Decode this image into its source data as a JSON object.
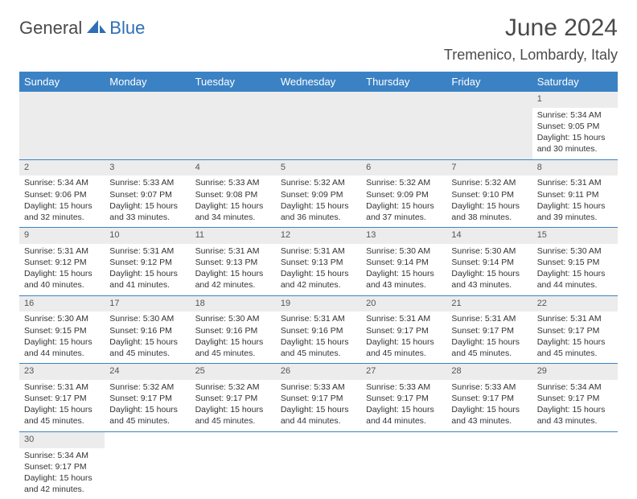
{
  "logo": {
    "text1": "General",
    "text2": "Blue"
  },
  "title": "June 2024",
  "location": "Tremenico, Lombardy, Italy",
  "colors": {
    "header_bg": "#3b82c4",
    "header_fg": "#ffffff",
    "border": "#3b82c4",
    "shade": "#ececec",
    "text": "#333333"
  },
  "weekdays": [
    "Sunday",
    "Monday",
    "Tuesday",
    "Wednesday",
    "Thursday",
    "Friday",
    "Saturday"
  ],
  "weeks": [
    [
      null,
      null,
      null,
      null,
      null,
      null,
      {
        "n": "1",
        "sr": "Sunrise: 5:34 AM",
        "ss": "Sunset: 9:05 PM",
        "dl": "Daylight: 15 hours and 30 minutes."
      }
    ],
    [
      {
        "n": "2",
        "sr": "Sunrise: 5:34 AM",
        "ss": "Sunset: 9:06 PM",
        "dl": "Daylight: 15 hours and 32 minutes."
      },
      {
        "n": "3",
        "sr": "Sunrise: 5:33 AM",
        "ss": "Sunset: 9:07 PM",
        "dl": "Daylight: 15 hours and 33 minutes."
      },
      {
        "n": "4",
        "sr": "Sunrise: 5:33 AM",
        "ss": "Sunset: 9:08 PM",
        "dl": "Daylight: 15 hours and 34 minutes."
      },
      {
        "n": "5",
        "sr": "Sunrise: 5:32 AM",
        "ss": "Sunset: 9:09 PM",
        "dl": "Daylight: 15 hours and 36 minutes."
      },
      {
        "n": "6",
        "sr": "Sunrise: 5:32 AM",
        "ss": "Sunset: 9:09 PM",
        "dl": "Daylight: 15 hours and 37 minutes."
      },
      {
        "n": "7",
        "sr": "Sunrise: 5:32 AM",
        "ss": "Sunset: 9:10 PM",
        "dl": "Daylight: 15 hours and 38 minutes."
      },
      {
        "n": "8",
        "sr": "Sunrise: 5:31 AM",
        "ss": "Sunset: 9:11 PM",
        "dl": "Daylight: 15 hours and 39 minutes."
      }
    ],
    [
      {
        "n": "9",
        "sr": "Sunrise: 5:31 AM",
        "ss": "Sunset: 9:12 PM",
        "dl": "Daylight: 15 hours and 40 minutes."
      },
      {
        "n": "10",
        "sr": "Sunrise: 5:31 AM",
        "ss": "Sunset: 9:12 PM",
        "dl": "Daylight: 15 hours and 41 minutes."
      },
      {
        "n": "11",
        "sr": "Sunrise: 5:31 AM",
        "ss": "Sunset: 9:13 PM",
        "dl": "Daylight: 15 hours and 42 minutes."
      },
      {
        "n": "12",
        "sr": "Sunrise: 5:31 AM",
        "ss": "Sunset: 9:13 PM",
        "dl": "Daylight: 15 hours and 42 minutes."
      },
      {
        "n": "13",
        "sr": "Sunrise: 5:30 AM",
        "ss": "Sunset: 9:14 PM",
        "dl": "Daylight: 15 hours and 43 minutes."
      },
      {
        "n": "14",
        "sr": "Sunrise: 5:30 AM",
        "ss": "Sunset: 9:14 PM",
        "dl": "Daylight: 15 hours and 43 minutes."
      },
      {
        "n": "15",
        "sr": "Sunrise: 5:30 AM",
        "ss": "Sunset: 9:15 PM",
        "dl": "Daylight: 15 hours and 44 minutes."
      }
    ],
    [
      {
        "n": "16",
        "sr": "Sunrise: 5:30 AM",
        "ss": "Sunset: 9:15 PM",
        "dl": "Daylight: 15 hours and 44 minutes."
      },
      {
        "n": "17",
        "sr": "Sunrise: 5:30 AM",
        "ss": "Sunset: 9:16 PM",
        "dl": "Daylight: 15 hours and 45 minutes."
      },
      {
        "n": "18",
        "sr": "Sunrise: 5:30 AM",
        "ss": "Sunset: 9:16 PM",
        "dl": "Daylight: 15 hours and 45 minutes."
      },
      {
        "n": "19",
        "sr": "Sunrise: 5:31 AM",
        "ss": "Sunset: 9:16 PM",
        "dl": "Daylight: 15 hours and 45 minutes."
      },
      {
        "n": "20",
        "sr": "Sunrise: 5:31 AM",
        "ss": "Sunset: 9:17 PM",
        "dl": "Daylight: 15 hours and 45 minutes."
      },
      {
        "n": "21",
        "sr": "Sunrise: 5:31 AM",
        "ss": "Sunset: 9:17 PM",
        "dl": "Daylight: 15 hours and 45 minutes."
      },
      {
        "n": "22",
        "sr": "Sunrise: 5:31 AM",
        "ss": "Sunset: 9:17 PM",
        "dl": "Daylight: 15 hours and 45 minutes."
      }
    ],
    [
      {
        "n": "23",
        "sr": "Sunrise: 5:31 AM",
        "ss": "Sunset: 9:17 PM",
        "dl": "Daylight: 15 hours and 45 minutes."
      },
      {
        "n": "24",
        "sr": "Sunrise: 5:32 AM",
        "ss": "Sunset: 9:17 PM",
        "dl": "Daylight: 15 hours and 45 minutes."
      },
      {
        "n": "25",
        "sr": "Sunrise: 5:32 AM",
        "ss": "Sunset: 9:17 PM",
        "dl": "Daylight: 15 hours and 45 minutes."
      },
      {
        "n": "26",
        "sr": "Sunrise: 5:33 AM",
        "ss": "Sunset: 9:17 PM",
        "dl": "Daylight: 15 hours and 44 minutes."
      },
      {
        "n": "27",
        "sr": "Sunrise: 5:33 AM",
        "ss": "Sunset: 9:17 PM",
        "dl": "Daylight: 15 hours and 44 minutes."
      },
      {
        "n": "28",
        "sr": "Sunrise: 5:33 AM",
        "ss": "Sunset: 9:17 PM",
        "dl": "Daylight: 15 hours and 43 minutes."
      },
      {
        "n": "29",
        "sr": "Sunrise: 5:34 AM",
        "ss": "Sunset: 9:17 PM",
        "dl": "Daylight: 15 hours and 43 minutes."
      }
    ],
    [
      {
        "n": "30",
        "sr": "Sunrise: 5:34 AM",
        "ss": "Sunset: 9:17 PM",
        "dl": "Daylight: 15 hours and 42 minutes."
      },
      null,
      null,
      null,
      null,
      null,
      null
    ]
  ]
}
